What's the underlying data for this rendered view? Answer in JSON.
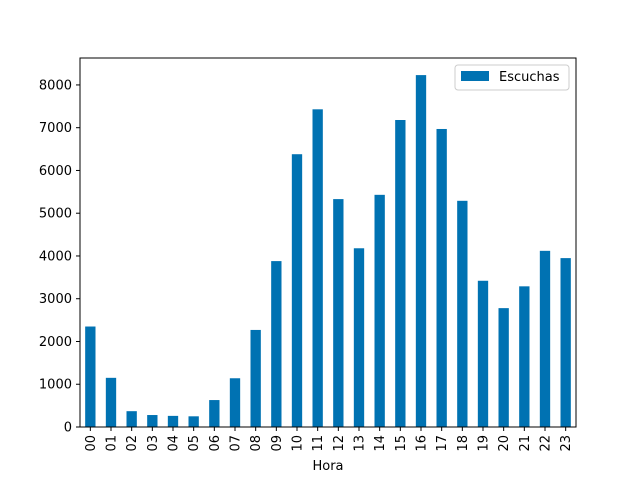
{
  "chart_data": {
    "type": "bar",
    "title": "",
    "xlabel": "Hora",
    "ylabel": "",
    "categories": [
      "00",
      "01",
      "02",
      "03",
      "04",
      "05",
      "06",
      "07",
      "08",
      "09",
      "10",
      "11",
      "12",
      "13",
      "14",
      "15",
      "16",
      "17",
      "18",
      "19",
      "20",
      "21",
      "22",
      "23"
    ],
    "series": [
      {
        "name": "Escuchas",
        "color": "#0072b2",
        "values": [
          2350,
          1150,
          370,
          280,
          260,
          250,
          630,
          1140,
          2270,
          3880,
          6380,
          7430,
          5330,
          4180,
          5430,
          7180,
          8230,
          6970,
          5290,
          3420,
          2780,
          3290,
          4120,
          3950
        ]
      }
    ],
    "ylim": [
      0,
      8630
    ],
    "yticks": [
      0,
      1000,
      2000,
      3000,
      4000,
      5000,
      6000,
      7000,
      8000
    ],
    "grid": false,
    "legend_position": "upper right"
  }
}
